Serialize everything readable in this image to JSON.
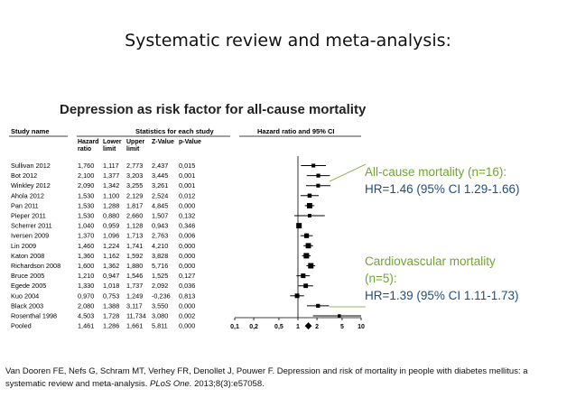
{
  "slide": {
    "title": "Systematic review and meta-analysis:",
    "citation_prefix": "Van Dooren FE, Nefs G, Schram MT, Verhey FR, Denollet J, Pouwer F. Depression and risk of mortality in people with diabetes mellitus: a systematic review and meta-analysis.",
    "citation_journal": "PLoS One.",
    "citation_suffix": "2013;8(3):e57058."
  },
  "annotations": {
    "allcause": {
      "label": "All-cause mortality (n=16):",
      "value": "HR=1.46 (95% CI 1.29-1.66)"
    },
    "cardio": {
      "label1": "Cardiovascular mortality",
      "label2": "(n=5):",
      "value": "HR=1.39 (95% CI 1.11-1.73)"
    },
    "colors": {
      "green": "#6fa52f",
      "blue": "#1f4e7a"
    }
  },
  "chart_data": {
    "type": "forest",
    "title": "Depression as risk factor for all-cause mortality",
    "headers": {
      "study": "Study name",
      "stats": "Statistics for each study",
      "plot": "Hazard ratio and 95% CI",
      "columns": [
        "Hazard ratio",
        "Lower limit",
        "Upper limit",
        "Z-Value",
        "p-Value"
      ]
    },
    "x_scale": "log",
    "x_ticks": [
      "0,1",
      "0,2",
      "0,5",
      "1",
      "2",
      "5",
      "10"
    ],
    "x_tick_values": [
      0.1,
      0.2,
      0.5,
      1,
      2,
      5,
      10
    ],
    "xlim": [
      0.1,
      10
    ],
    "studies": [
      {
        "name": "Sullivan 2012",
        "hr": "1,760",
        "lower": "1,117",
        "upper": "2,773",
        "z": "2,437",
        "p": "0,015",
        "v": [
          1.76,
          1.117,
          2.773
        ]
      },
      {
        "name": "Bot 2012",
        "hr": "2,100",
        "lower": "1,377",
        "upper": "3,203",
        "z": "3,445",
        "p": "0,001",
        "v": [
          2.1,
          1.377,
          3.203
        ]
      },
      {
        "name": "Winkley 2012",
        "hr": "2,090",
        "lower": "1,342",
        "upper": "3,255",
        "z": "3,261",
        "p": "0,001",
        "v": [
          2.09,
          1.342,
          3.255
        ]
      },
      {
        "name": "Ahola 2012",
        "hr": "1,530",
        "lower": "1,100",
        "upper": "2,129",
        "z": "2,524",
        "p": "0,012",
        "v": [
          1.53,
          1.1,
          2.129
        ]
      },
      {
        "name": "Pan 2011",
        "hr": "1,530",
        "lower": "1,288",
        "upper": "1,817",
        "z": "4,845",
        "p": "0,000",
        "v": [
          1.53,
          1.288,
          1.817
        ]
      },
      {
        "name": "Pieper 2011",
        "hr": "1,530",
        "lower": "0,880",
        "upper": "2,660",
        "z": "1,507",
        "p": "0,132",
        "v": [
          1.53,
          0.88,
          2.66
        ]
      },
      {
        "name": "Scherrer 2011",
        "hr": "1,040",
        "lower": "0,959",
        "upper": "1,128",
        "z": "0,943",
        "p": "0,346",
        "v": [
          1.04,
          0.959,
          1.128
        ]
      },
      {
        "name": "Iversen 2009",
        "hr": "1,370",
        "lower": "1,096",
        "upper": "1,713",
        "z": "2,763",
        "p": "0,006",
        "v": [
          1.37,
          1.096,
          1.713
        ]
      },
      {
        "name": "Lin 2009",
        "hr": "1,460",
        "lower": "1,224",
        "upper": "1,741",
        "z": "4,210",
        "p": "0,000",
        "v": [
          1.46,
          1.224,
          1.741
        ]
      },
      {
        "name": "Katon 2008",
        "hr": "1,360",
        "lower": "1,162",
        "upper": "1,592",
        "z": "3,828",
        "p": "0,000",
        "v": [
          1.36,
          1.162,
          1.592
        ]
      },
      {
        "name": "Richardson 2008",
        "hr": "1,600",
        "lower": "1,362",
        "upper": "1,880",
        "z": "5,716",
        "p": "0,000",
        "v": [
          1.6,
          1.362,
          1.88
        ]
      },
      {
        "name": "Bruce 2005",
        "hr": "1,210",
        "lower": "0,947",
        "upper": "1,546",
        "z": "1,525",
        "p": "0,127",
        "v": [
          1.21,
          0.947,
          1.546
        ]
      },
      {
        "name": "Egede 2005",
        "hr": "1,330",
        "lower": "1,018",
        "upper": "1,737",
        "z": "2,092",
        "p": "0,036",
        "v": [
          1.33,
          1.018,
          1.737
        ]
      },
      {
        "name": "Kuo 2004",
        "hr": "0,970",
        "lower": "0,753",
        "upper": "1,249",
        "z": "-0,236",
        "p": "0,813",
        "v": [
          0.97,
          0.753,
          1.249
        ]
      },
      {
        "name": "Black 2003",
        "hr": "2,080",
        "lower": "1,388",
        "upper": "3,117",
        "z": "3,550",
        "p": "0,000",
        "v": [
          2.08,
          1.388,
          3.117
        ]
      },
      {
        "name": "Rosenthal 1998",
        "hr": "4,503",
        "lower": "1,728",
        "upper": "11,734",
        "z": "3,080",
        "p": "0,002",
        "v": [
          4.503,
          1.728,
          11.734
        ]
      }
    ],
    "pooled": {
      "name": "Pooled",
      "hr": "1,461",
      "lower": "1,286",
      "upper": "1,661",
      "z": "5,811",
      "p": "0,000",
      "v": [
        1.461,
        1.286,
        1.661
      ]
    }
  }
}
